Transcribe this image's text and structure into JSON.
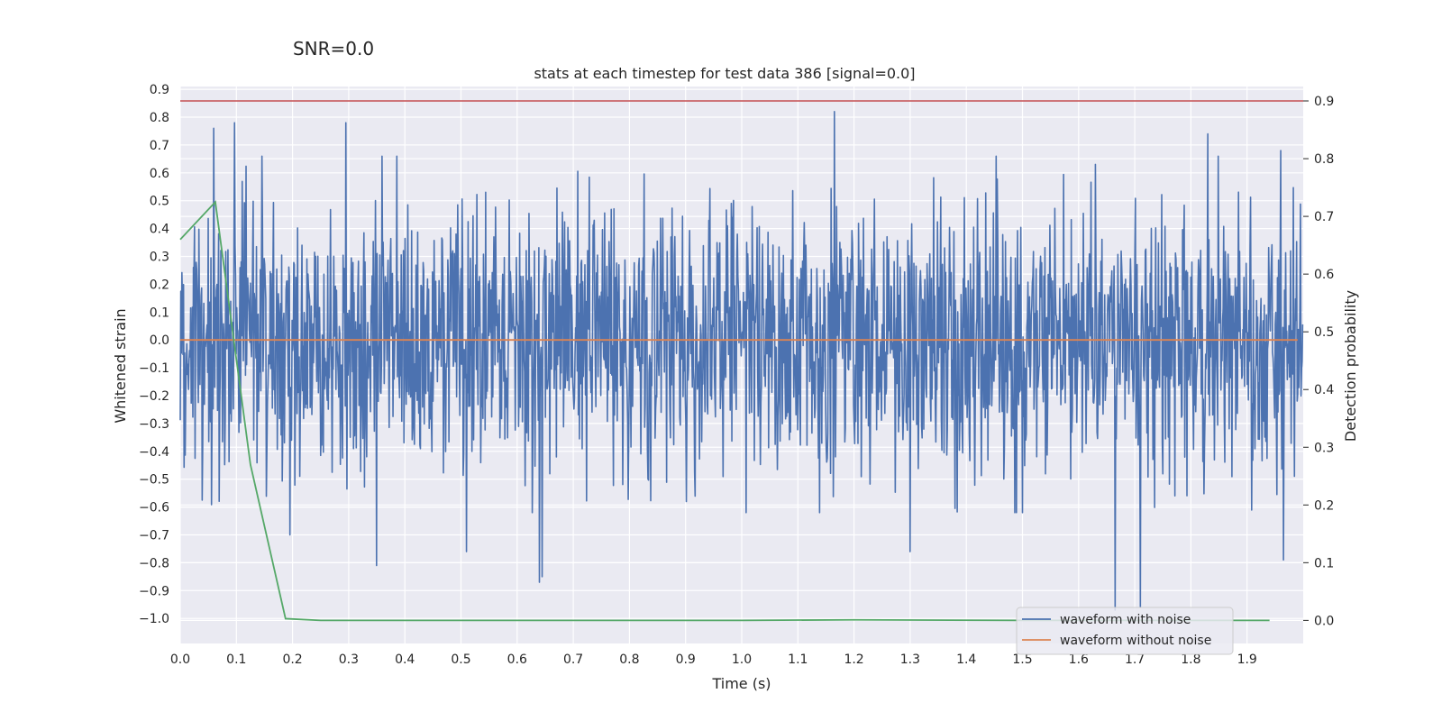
{
  "chart_data": {
    "type": "line",
    "suptitle": "SNR=0.0",
    "title": "stats at each timestep for test data 386 [signal=0.0]",
    "xlabel": "Time (s)",
    "ylabel": "Whitened strain",
    "y2label": "Detection probability",
    "xlim": [
      0.0,
      2.0
    ],
    "ylim": [
      -1.09,
      0.91
    ],
    "y2lim": [
      -0.04,
      0.925
    ],
    "xticks": [
      0.0,
      0.1,
      0.2,
      0.3,
      0.4,
      0.5,
      0.6,
      0.7,
      0.8,
      0.9,
      1.0,
      1.1,
      1.2,
      1.3,
      1.4,
      1.5,
      1.6,
      1.7,
      1.8,
      1.9
    ],
    "xtick_labels": [
      "0.0",
      "0.1",
      "0.2",
      "0.3",
      "0.4",
      "0.5",
      "0.6",
      "0.7",
      "0.8",
      "0.9",
      "1.0",
      "1.1",
      "1.2",
      "1.3",
      "1.4",
      "1.5",
      "1.6",
      "1.7",
      "1.8",
      "1.9"
    ],
    "yticks": [
      0.9,
      0.8,
      0.7,
      0.6,
      0.5,
      0.4,
      0.3,
      0.2,
      0.1,
      0.0,
      -0.1,
      -0.2,
      -0.3,
      -0.4,
      -0.5,
      -0.6,
      -0.7,
      -0.8,
      -0.9,
      -1.0
    ],
    "ytick_labels": [
      "0.9",
      "0.8",
      "0.7",
      "0.6",
      "0.5",
      "0.4",
      "0.3",
      "0.2",
      "0.1",
      "0.0",
      "−0.1",
      "−0.2",
      "−0.3",
      "−0.4",
      "−0.5",
      "−0.6",
      "−0.7",
      "−0.8",
      "−0.9",
      "−1.0"
    ],
    "y2ticks": [
      0.9,
      0.8,
      0.7,
      0.6,
      0.5,
      0.4,
      0.3,
      0.2,
      0.1,
      0.0
    ],
    "y2tick_labels": [
      "0.9",
      "0.8",
      "0.7",
      "0.6",
      "0.5",
      "0.4",
      "0.3",
      "0.2",
      "0.1",
      "0.0"
    ],
    "grid": true,
    "legend_position": "lower-right",
    "colors": {
      "noise": "#4c72b0",
      "clean": "#dd8452",
      "probability": "#55a868",
      "threshold": "#c44e52",
      "background": "#eaeaf2",
      "grid": "#ffffff"
    },
    "series": [
      {
        "name": "waveform with noise",
        "axis": "left",
        "kind": "noise",
        "n_points": 2048,
        "seed": 386,
        "std": 0.24,
        "spikes": [
          {
            "x": 0.06,
            "y": 0.76
          },
          {
            "x": 0.097,
            "y": 0.78
          },
          {
            "x": 0.195,
            "y": -0.7
          },
          {
            "x": 0.295,
            "y": 0.78
          },
          {
            "x": 0.35,
            "y": -0.81
          },
          {
            "x": 0.51,
            "y": -0.76
          },
          {
            "x": 0.64,
            "y": -0.87
          },
          {
            "x": 0.645,
            "y": -0.85
          },
          {
            "x": 1.165,
            "y": 0.82
          },
          {
            "x": 1.3,
            "y": -0.76
          },
          {
            "x": 1.665,
            "y": -0.97
          },
          {
            "x": 1.71,
            "y": -0.96
          },
          {
            "x": 1.83,
            "y": 0.74
          },
          {
            "x": 1.96,
            "y": 0.68
          },
          {
            "x": 1.965,
            "y": -0.79
          }
        ]
      },
      {
        "name": "waveform without noise",
        "axis": "left",
        "kind": "line",
        "x": [
          0.0,
          1.99
        ],
        "values": [
          0.0,
          0.0
        ]
      },
      {
        "name": "detection probability",
        "axis": "right",
        "kind": "line",
        "x": [
          0.0,
          0.0625,
          0.125,
          0.1875,
          0.25,
          0.5,
          1.0,
          1.2,
          1.5,
          1.94
        ],
        "values": [
          0.66,
          0.725,
          0.27,
          0.003,
          0.0,
          0.0,
          0.0,
          0.001,
          0.0,
          0.0
        ]
      },
      {
        "name": "threshold",
        "axis": "right",
        "kind": "hline",
        "value": 0.9
      }
    ],
    "legend": [
      "waveform with noise",
      "waveform without noise"
    ]
  }
}
